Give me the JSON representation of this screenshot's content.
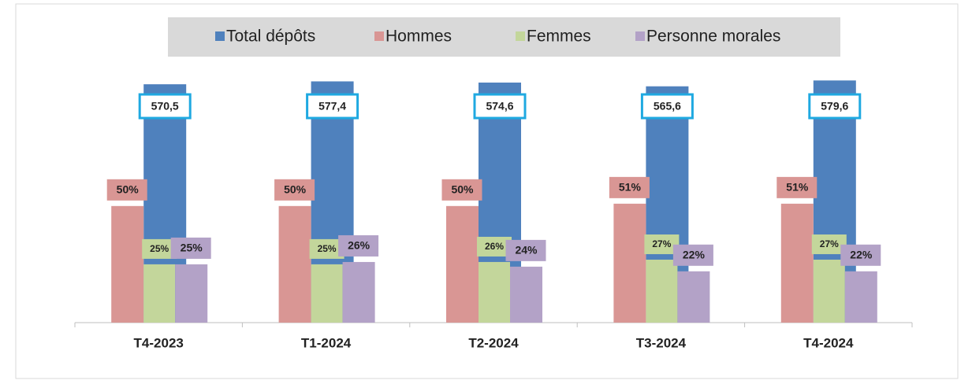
{
  "chart_data": {
    "type": "bar",
    "categories": [
      "T4-2023",
      "T1-2024",
      "T2-2024",
      "T3-2024",
      "T4-2024"
    ],
    "series": [
      {
        "name": "Total dépôts",
        "color": "#4f81bd",
        "axis": "y2",
        "values": [
          570.5,
          577.4,
          574.6,
          565.6,
          579.6
        ],
        "value_labels": [
          "570,5",
          "577,4",
          "574,6",
          "565,6",
          "579,6"
        ]
      },
      {
        "name": "Hommes",
        "color": "#d99694",
        "values": [
          50,
          50,
          50,
          51,
          51
        ],
        "value_labels": [
          "50%",
          "50%",
          "50%",
          "51%",
          "51%"
        ]
      },
      {
        "name": "Femmes",
        "color": "#c3d69b",
        "values": [
          25,
          25,
          26,
          27,
          27
        ],
        "value_labels": [
          "25%",
          "25%",
          "26%",
          "27%",
          "27%"
        ]
      },
      {
        "name": "Personne morales",
        "color": "#b3a2c7",
        "values": [
          25,
          26,
          24,
          22,
          22
        ],
        "value_labels": [
          "25%",
          "26%",
          "24%",
          "22%",
          "22%"
        ]
      }
    ],
    "ylim": [
      0,
      110
    ],
    "y2lim": [
      0,
      614
    ],
    "legend": "top"
  }
}
